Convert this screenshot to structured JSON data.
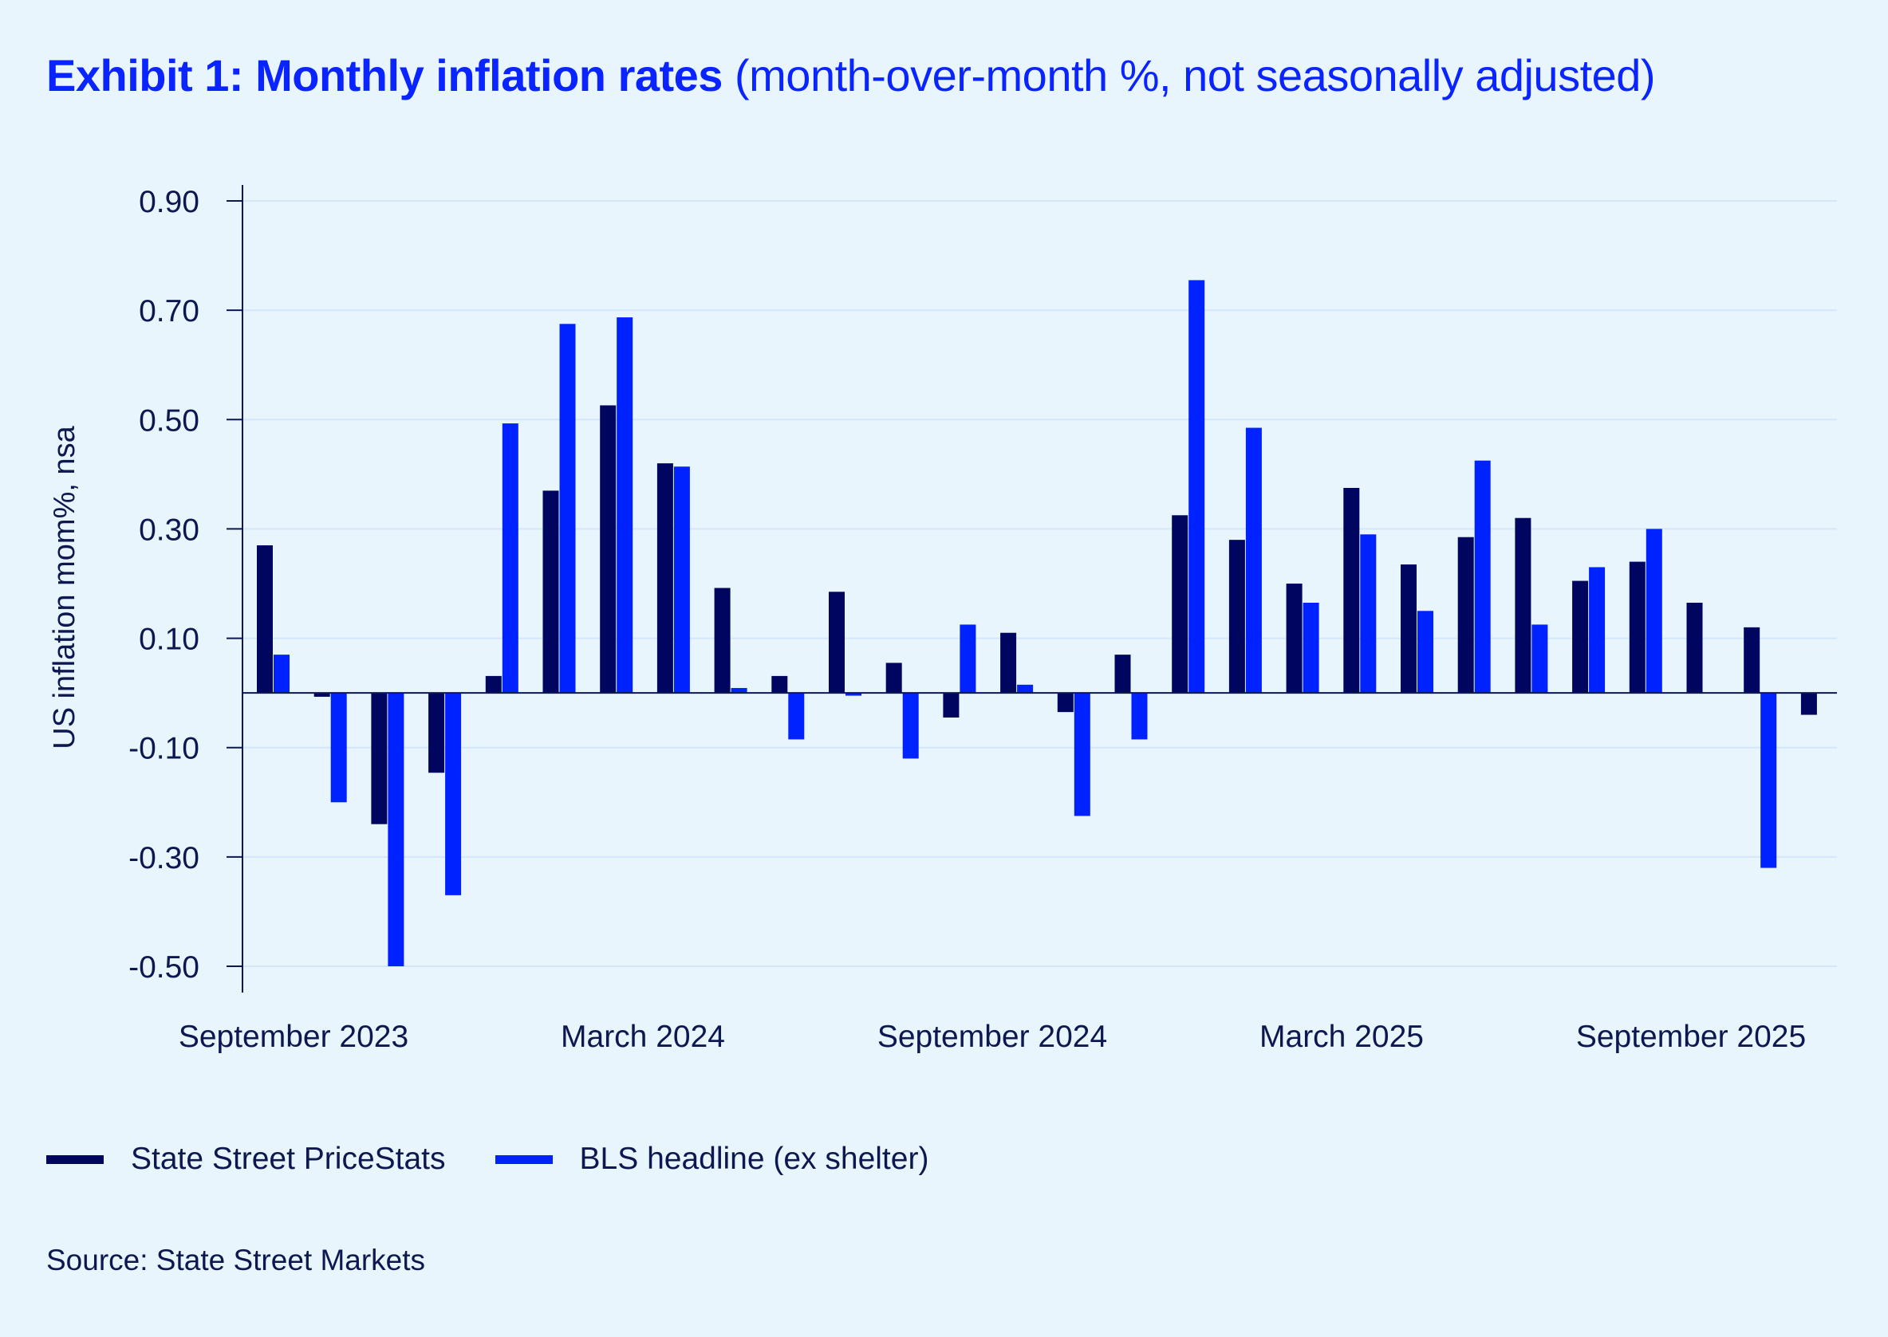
{
  "title": {
    "bold": "Exhibit 1: Monthly inflation rates",
    "normal": " (month-over-month %, not seasonally adjusted)"
  },
  "source": "Source: State Street Markets",
  "colors": {
    "background": "#e8f5fd",
    "state_street": "#000660",
    "bls": "#0022ff",
    "grid": "#d3e6fa",
    "axis": "#0d1850"
  },
  "chart_data": {
    "type": "bar",
    "ylabel": "US inflation mom%, nsa",
    "ylim": [
      -0.5,
      0.9
    ],
    "yticks": [
      "0.90",
      "0.70",
      "0.50",
      "0.30",
      "0.10",
      "-0.10",
      "-0.30",
      "-0.50"
    ],
    "ytick_values": [
      0.9,
      0.7,
      0.5,
      0.3,
      0.1,
      -0.1,
      -0.3,
      -0.5
    ],
    "grid": true,
    "legend_placement": "bottom-left",
    "categories": [
      "Sep 2023",
      "Oct 2023",
      "Nov 2023",
      "Dec 2023",
      "Jan 2024",
      "Feb 2024",
      "Mar 2024",
      "Apr 2024",
      "May 2024",
      "Jun 2024",
      "Jul 2024",
      "Aug 2024",
      "Sep 2024",
      "Oct 2024",
      "Nov 2024",
      "Dec 2024",
      "Jan 2025",
      "Feb 2025",
      "Mar 2025",
      "Apr 2025",
      "May 2025",
      "Jun 2025",
      "Jul 2025",
      "Aug 2025",
      "Sep 2025",
      "Oct 2025",
      "Nov 2025",
      "Dec 2025"
    ],
    "xtick_labels": [
      {
        "index": 0,
        "label": "September 2023"
      },
      {
        "index": 6,
        "label": "March 2024"
      },
      {
        "index": 12,
        "label": "September 2024"
      },
      {
        "index": 18,
        "label": "March 2025"
      },
      {
        "index": 24,
        "label": "September 2025"
      }
    ],
    "series": [
      {
        "name": "State Street PriceStats",
        "values": [
          0.27,
          -0.007,
          -0.24,
          -0.146,
          0.031,
          0.37,
          0.526,
          0.42,
          0.192,
          0.031,
          0.185,
          0.055,
          -0.045,
          0.11,
          -0.035,
          0.07,
          0.325,
          0.28,
          0.2,
          0.375,
          0.235,
          0.285,
          0.32,
          0.205,
          0.24,
          0.165,
          0.12,
          -0.04
        ]
      },
      {
        "name": "BLS headline (ex shelter)",
        "values": [
          0.07,
          -0.2,
          -0.5,
          -0.37,
          0.493,
          0.675,
          0.687,
          0.414,
          0.009,
          -0.085,
          -0.005,
          -0.12,
          0.125,
          0.015,
          -0.225,
          -0.085,
          0.755,
          0.485,
          0.165,
          0.29,
          0.15,
          0.425,
          0.125,
          0.23,
          0.3,
          null,
          -0.32,
          null
        ]
      }
    ]
  }
}
